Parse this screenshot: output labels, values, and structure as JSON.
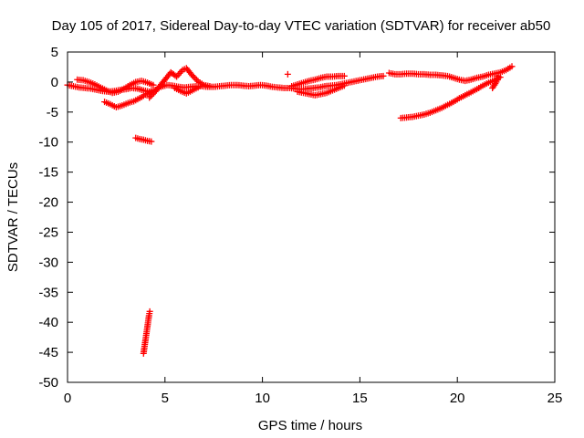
{
  "chart_data": {
    "type": "scatter",
    "title": "Day 105 of 2017, Sidereal Day-to-day VTEC variation (SDTVAR) for receiver ab50",
    "xlabel": "GPS time / hours",
    "ylabel": "SDTVAR / TECUs",
    "xlim": [
      0,
      25
    ],
    "ylim": [
      -50,
      5
    ],
    "xticks": [
      0,
      5,
      10,
      15,
      20,
      25
    ],
    "yticks": [
      5,
      0,
      -5,
      -10,
      -15,
      -20,
      -25,
      -30,
      -35,
      -40,
      -45,
      -50
    ],
    "grid": false,
    "legend": "none",
    "marker": "plus",
    "color": "#ff0000",
    "series": [
      {
        "segments": [
          [
            [
              0.0,
              -0.5
            ],
            [
              0.3,
              -0.7
            ],
            [
              0.6,
              -0.9
            ],
            [
              0.9,
              -1.0
            ],
            [
              1.2,
              -1.1
            ],
            [
              1.5,
              -1.3
            ],
            [
              1.8,
              -1.5
            ],
            [
              2.1,
              -1.6
            ],
            [
              2.4,
              -1.5
            ],
            [
              2.7,
              -1.3
            ],
            [
              3.0,
              -1.2
            ],
            [
              3.3,
              -1.0
            ],
            [
              3.6,
              -1.1
            ],
            [
              3.9,
              -1.4
            ],
            [
              4.2,
              -1.6
            ],
            [
              4.5,
              -1.3
            ],
            [
              4.8,
              -0.8
            ],
            [
              5.1,
              -0.5
            ],
            [
              5.4,
              -0.6
            ],
            [
              5.7,
              -0.8
            ],
            [
              6.0,
              -0.9
            ],
            [
              6.3,
              -0.8
            ],
            [
              6.6,
              -0.7
            ],
            [
              6.9,
              -0.7
            ],
            [
              7.2,
              -0.8
            ],
            [
              7.5,
              -0.8
            ],
            [
              7.8,
              -0.7
            ],
            [
              8.1,
              -0.6
            ],
            [
              8.4,
              -0.5
            ],
            [
              8.7,
              -0.5
            ],
            [
              9.0,
              -0.6
            ],
            [
              9.3,
              -0.7
            ],
            [
              9.6,
              -0.6
            ],
            [
              9.9,
              -0.5
            ],
            [
              10.2,
              -0.6
            ],
            [
              10.5,
              -0.8
            ],
            [
              10.8,
              -0.9
            ],
            [
              11.1,
              -1.0
            ],
            [
              11.4,
              -1.0
            ],
            [
              11.7,
              -1.1
            ],
            [
              12.0,
              -1.2
            ],
            [
              12.3,
              -1.1
            ],
            [
              12.6,
              -1.0
            ],
            [
              12.9,
              -0.9
            ],
            [
              13.2,
              -0.7
            ],
            [
              13.5,
              -0.6
            ],
            [
              13.8,
              -0.5
            ],
            [
              14.1,
              -0.3
            ],
            [
              14.4,
              -0.1
            ],
            [
              14.7,
              0.1
            ],
            [
              15.0,
              0.3
            ],
            [
              15.3,
              0.5
            ],
            [
              15.6,
              0.7
            ],
            [
              15.9,
              0.9
            ],
            [
              16.2,
              1.0
            ]
          ],
          [
            [
              0.5,
              0.4
            ],
            [
              0.8,
              0.3
            ],
            [
              1.1,
              0.0
            ],
            [
              1.4,
              -0.4
            ],
            [
              1.7,
              -0.9
            ],
            [
              2.0,
              -1.4
            ],
            [
              2.3,
              -1.8
            ],
            [
              2.6,
              -1.6
            ],
            [
              2.9,
              -1.1
            ],
            [
              3.2,
              -0.5
            ],
            [
              3.5,
              0.0
            ],
            [
              3.8,
              0.2
            ],
            [
              4.1,
              -0.1
            ],
            [
              4.4,
              -0.5
            ]
          ],
          [
            [
              1.9,
              -3.3
            ],
            [
              2.2,
              -3.7
            ],
            [
              2.5,
              -4.2
            ],
            [
              2.8,
              -3.9
            ],
            [
              3.1,
              -3.5
            ],
            [
              3.4,
              -3.2
            ],
            [
              3.7,
              -2.7
            ],
            [
              4.0,
              -2.1
            ],
            [
              4.3,
              -1.6
            ]
          ],
          [
            [
              4.2,
              -2.6
            ],
            [
              4.5,
              -1.6
            ],
            [
              4.8,
              -0.4
            ],
            [
              5.1,
              0.8
            ],
            [
              5.3,
              1.6
            ],
            [
              5.6,
              0.9
            ],
            [
              5.9,
              2.0
            ],
            [
              6.1,
              2.3
            ],
            [
              6.4,
              1.1
            ],
            [
              6.7,
              0.1
            ],
            [
              7.0,
              -0.5
            ],
            [
              7.3,
              -0.7
            ]
          ],
          [
            [
              5.5,
              -1.0
            ],
            [
              5.8,
              -1.5
            ],
            [
              6.1,
              -1.9
            ],
            [
              6.4,
              -1.4
            ],
            [
              6.7,
              -0.9
            ]
          ],
          [
            [
              11.3,
              1.3
            ]
          ],
          [
            [
              11.5,
              -0.7
            ],
            [
              11.8,
              -0.4
            ],
            [
              12.1,
              -0.1
            ],
            [
              12.4,
              0.2
            ],
            [
              12.7,
              0.4
            ],
            [
              13.0,
              0.7
            ],
            [
              13.3,
              0.9
            ],
            [
              13.6,
              0.9
            ],
            [
              13.9,
              1.0
            ],
            [
              14.2,
              1.0
            ]
          ],
          [
            [
              11.8,
              -1.6
            ],
            [
              12.1,
              -1.8
            ],
            [
              12.4,
              -2.0
            ],
            [
              12.7,
              -2.2
            ],
            [
              13.0,
              -2.0
            ],
            [
              13.3,
              -1.8
            ],
            [
              13.6,
              -1.4
            ],
            [
              13.9,
              -1.0
            ],
            [
              14.2,
              -0.6
            ]
          ],
          [
            [
              16.5,
              1.5
            ],
            [
              16.8,
              1.3
            ],
            [
              17.1,
              1.3
            ],
            [
              17.4,
              1.4
            ],
            [
              17.7,
              1.4
            ],
            [
              18.0,
              1.3
            ],
            [
              18.3,
              1.3
            ],
            [
              18.6,
              1.2
            ],
            [
              18.9,
              1.2
            ],
            [
              19.2,
              1.1
            ],
            [
              19.5,
              1.0
            ],
            [
              19.8,
              0.7
            ],
            [
              20.1,
              0.4
            ],
            [
              20.4,
              0.2
            ],
            [
              20.7,
              0.4
            ],
            [
              21.0,
              0.7
            ],
            [
              21.3,
              0.9
            ],
            [
              21.6,
              1.2
            ],
            [
              21.9,
              1.4
            ],
            [
              22.2,
              1.6
            ],
            [
              22.5,
              2.0
            ],
            [
              22.8,
              2.6
            ]
          ],
          [
            [
              17.1,
              -6.0
            ],
            [
              17.4,
              -5.9
            ],
            [
              17.7,
              -5.8
            ],
            [
              18.0,
              -5.6
            ],
            [
              18.3,
              -5.4
            ],
            [
              18.6,
              -5.1
            ],
            [
              18.9,
              -4.7
            ],
            [
              19.2,
              -4.3
            ],
            [
              19.5,
              -3.8
            ],
            [
              19.8,
              -3.3
            ],
            [
              20.1,
              -2.7
            ],
            [
              20.4,
              -2.2
            ],
            [
              20.7,
              -1.7
            ],
            [
              21.0,
              -1.2
            ],
            [
              21.3,
              -0.6
            ],
            [
              21.6,
              -0.1
            ],
            [
              21.9,
              0.3
            ],
            [
              22.2,
              0.8
            ]
          ],
          [
            [
              21.8,
              -1.0
            ],
            [
              22.0,
              0.0
            ],
            [
              22.1,
              1.0
            ]
          ],
          [
            [
              3.5,
              -9.3
            ],
            [
              3.7,
              -9.5
            ],
            [
              3.9,
              -9.6
            ],
            [
              4.1,
              -9.8
            ],
            [
              4.3,
              -9.9
            ]
          ],
          [
            [
              3.9,
              -45.2
            ],
            [
              3.94,
              -44.3
            ],
            [
              3.98,
              -43.4
            ],
            [
              4.02,
              -42.5
            ],
            [
              4.06,
              -41.6
            ],
            [
              4.1,
              -40.7
            ],
            [
              4.14,
              -39.8
            ],
            [
              4.18,
              -38.9
            ],
            [
              4.22,
              -38.2
            ]
          ]
        ]
      }
    ]
  }
}
